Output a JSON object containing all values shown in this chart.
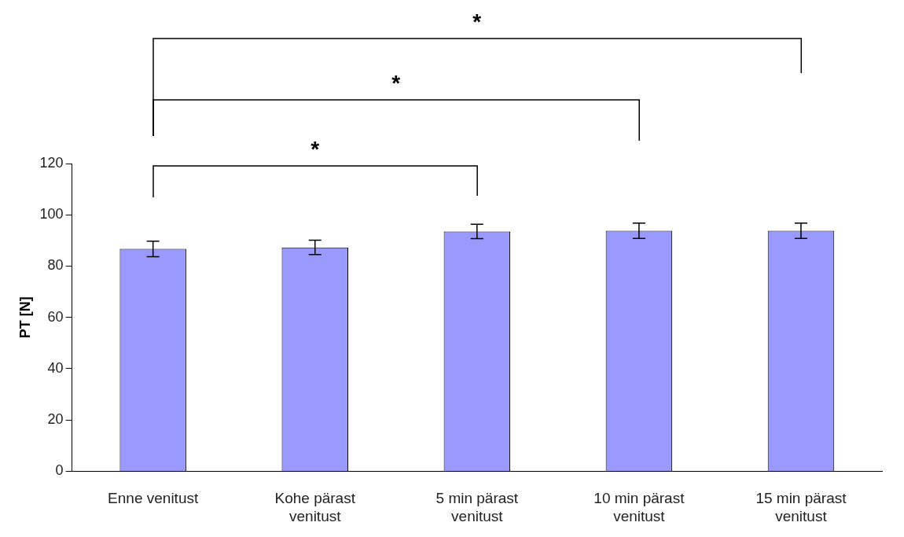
{
  "chart_data": {
    "type": "bar",
    "ylabel": "PT [N]",
    "categories": [
      "Enne venitust",
      "Kohe pärast venitust",
      "5 min pärast venitust",
      "10 min pärast venitust",
      "15 min pärast venitust"
    ],
    "values": [
      86.7,
      87.3,
      93.5,
      93.8,
      93.8
    ],
    "errors": [
      3,
      2.8,
      2.8,
      3,
      3
    ],
    "color": "#9999ff",
    "ylim": [
      0,
      120
    ],
    "yticks": [
      0,
      20,
      40,
      60,
      80,
      100,
      120
    ],
    "grid": false,
    "annotations": [
      "*",
      "*",
      "*"
    ]
  }
}
